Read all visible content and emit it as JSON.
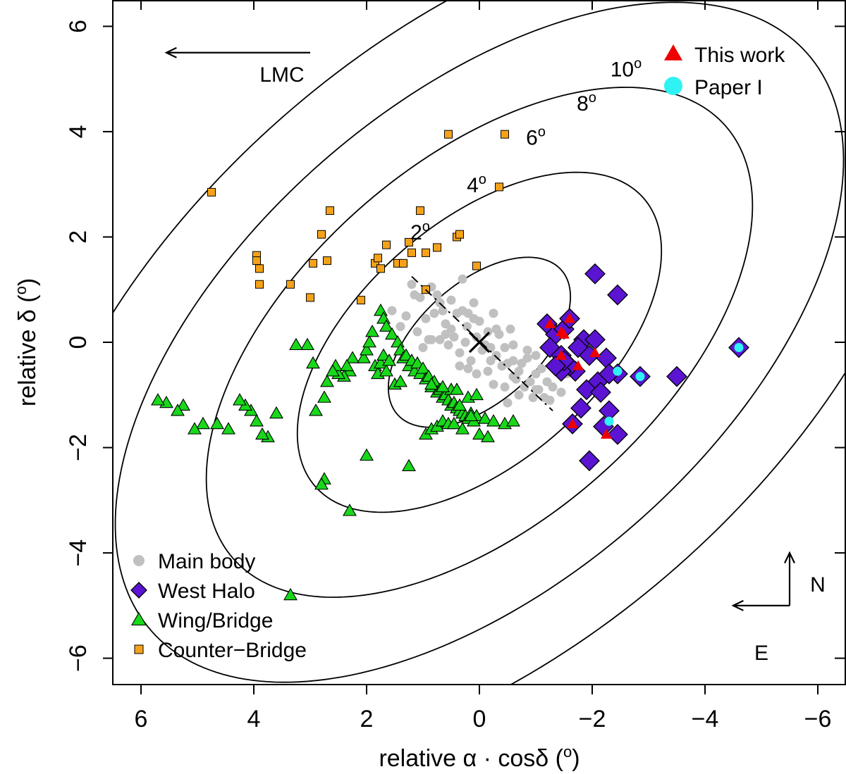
{
  "chart_data": {
    "type": "scatter",
    "title": "",
    "xlabel": "relative α · cosδ (°)",
    "ylabel": "relative δ (°)",
    "xlim": [
      6.5,
      -6.5
    ],
    "ylim": [
      -6.5,
      6.5
    ],
    "x_ticks": [
      6,
      4,
      2,
      0,
      -2,
      -4,
      -6
    ],
    "x_tick_labels": [
      "6",
      "4",
      "2",
      "0",
      "−2",
      "−4",
      "−6"
    ],
    "y_ticks": [
      -6,
      -4,
      -2,
      0,
      2,
      4,
      6
    ],
    "y_tick_labels": [
      "−6",
      "−4",
      "−2",
      "0",
      "2",
      "4",
      "6"
    ],
    "grid": false,
    "ellipses": {
      "axis_ratio": 0.55,
      "position_angle_deg": 45,
      "semi_major_deg": [
        2,
        4,
        6,
        8,
        10
      ],
      "labels": [
        "2°",
        "4°",
        "6°",
        "8°",
        "10°"
      ],
      "label_positions": [
        [
          1.05,
          1.95
        ],
        [
          0.05,
          2.85
        ],
        [
          -1.0,
          3.75
        ],
        [
          -1.9,
          4.4
        ],
        [
          -2.6,
          5.05
        ]
      ]
    },
    "center_marker": {
      "x": 0,
      "y": 0,
      "symbol": "x"
    },
    "major_axis_line": {
      "x": [
        1.2,
        -1.3
      ],
      "y": [
        1.25,
        -1.3
      ],
      "style": "dot-dash"
    },
    "annotations": {
      "lmc_label": "LMC",
      "lmc_arrow": {
        "from": [
          3.0,
          5.5
        ],
        "to": [
          5.55,
          5.5
        ]
      },
      "lmc_label_pos": [
        3.5,
        4.95
      ],
      "compass_n": "N",
      "compass_e": "E",
      "compass_origin": [
        -5.5,
        -5.0
      ],
      "compass_n_tip": [
        -5.5,
        -4.0
      ],
      "compass_e_tip": [
        -4.5,
        -5.0
      ],
      "compass_n_label_pos": [
        -6.0,
        -4.6
      ],
      "compass_e_label_pos": [
        -5.0,
        -5.9
      ]
    },
    "legend_bottom_left": {
      "position": "bottom-left",
      "entries": [
        "Main body",
        "West Halo",
        "Wing/Bridge",
        "Counter−Bridge"
      ]
    },
    "legend_top_right": {
      "position": "top-right",
      "entries": [
        "This work",
        "Paper I"
      ]
    },
    "colors": {
      "main_body": "#c0c0c0",
      "west_halo": "#5a14d2",
      "wing_bridge": "#18d81a",
      "counter_bridge": "#f5a21a",
      "this_work": "#ee0000",
      "paper_i": "#2ff2f2"
    },
    "series": [
      {
        "name": "Main body",
        "marker": "circle",
        "x": [
          1.05,
          0.85,
          0.65,
          0.4,
          0.22,
          0.05,
          -0.1,
          -0.3,
          -0.5,
          -0.7,
          -0.9,
          -1.05,
          -1.15,
          0.95,
          0.7,
          0.5,
          0.25,
          0.0,
          -0.2,
          -0.45,
          -0.65,
          -0.85,
          -1.1,
          -1.25,
          1.1,
          0.9,
          0.6,
          0.35,
          0.1,
          -0.15,
          -0.35,
          -0.6,
          -0.8,
          -1.0,
          -1.2,
          1.3,
          1.15,
          0.75,
          0.55,
          0.3,
          -0.05,
          -0.25,
          -0.55,
          -0.75,
          -0.95,
          -1.3,
          0.8,
          0.45,
          0.15,
          -0.4,
          -0.7,
          -1.45,
          1.2,
          0.7,
          -0.3,
          -1.0,
          0.2,
          -0.6,
          0.5,
          -0.15,
          1.4,
          1.0,
          0.6,
          0.2,
          -0.2,
          -0.6,
          -1.0,
          0.05,
          0.35,
          -0.45,
          0.85,
          -0.85,
          1.55,
          -1.55,
          0.3,
          -0.5,
          0.1,
          -0.25
        ],
        "y": [
          0.85,
          1.05,
          0.6,
          0.55,
          0.3,
          0.1,
          -0.05,
          -0.25,
          -0.4,
          -0.55,
          -0.75,
          -0.9,
          -1.05,
          0.45,
          0.75,
          0.25,
          0.0,
          0.4,
          -0.35,
          -0.1,
          -0.7,
          -0.3,
          -0.5,
          -1.1,
          0.2,
          0.05,
          0.35,
          -0.2,
          0.75,
          -0.55,
          0.15,
          -0.05,
          -0.85,
          -0.6,
          -0.75,
          0.5,
          0.9,
          0.9,
          -0.05,
          0.6,
          -0.15,
          -0.8,
          0.25,
          -0.4,
          -1.05,
          -0.85,
          0.55,
          0.1,
          -0.35,
          -0.45,
          -1.0,
          -0.95,
          1.1,
          0.05,
          0.25,
          -0.25,
          0.55,
          -0.65,
          0.8,
          0.2,
          0.3,
          -0.1,
          0.15,
          -0.5,
          -0.1,
          -0.35,
          -0.9,
          -0.6,
          -0.45,
          -0.85,
          0.05,
          -0.15,
          0.6,
          -0.6,
          1.2,
          -1.15,
          0.45,
          0.55
        ]
      },
      {
        "name": "West Halo",
        "marker": "diamond",
        "x": [
          -1.2,
          -1.35,
          -1.5,
          -1.6,
          -1.25,
          -1.45,
          -1.7,
          -1.85,
          -2.05,
          -1.75,
          -1.6,
          -1.45,
          -1.95,
          -2.25,
          -2.1,
          -2.45,
          -1.9,
          -2.15,
          -1.8,
          -2.3,
          -1.65,
          -2.2,
          -2.45,
          -2.85,
          -3.5,
          -4.6,
          -2.05,
          -2.45,
          -1.95,
          -2.3,
          -1.5,
          -1.35
        ],
        "y": [
          0.35,
          0.15,
          0.25,
          0.45,
          -0.1,
          -0.25,
          -0.55,
          0.05,
          0.05,
          -0.1,
          -0.45,
          -0.55,
          -0.25,
          -0.3,
          -0.75,
          -0.6,
          -0.9,
          -0.95,
          -1.25,
          -1.3,
          -1.55,
          -1.6,
          -1.75,
          -0.65,
          -0.65,
          -0.1,
          1.3,
          0.9,
          -2.25,
          -0.6,
          -0.35,
          -0.45
        ]
      },
      {
        "name": "Wing/Bridge",
        "marker": "triangle",
        "x": [
          1.75,
          1.7,
          1.65,
          1.55,
          1.45,
          1.4,
          1.35,
          1.3,
          1.25,
          1.2,
          1.15,
          1.1,
          1.05,
          1.0,
          0.95,
          0.9,
          0.85,
          0.8,
          0.75,
          0.7,
          0.65,
          0.6,
          0.55,
          0.5,
          0.45,
          0.4,
          0.35,
          0.3,
          0.25,
          0.2,
          0.15,
          0.1,
          0.05,
          -0.1,
          -0.25,
          -0.45,
          -0.6,
          2.05,
          2.0,
          1.95,
          1.9,
          1.85,
          1.8,
          1.75,
          1.7,
          1.65,
          1.6,
          2.25,
          2.3,
          2.35,
          2.4,
          2.5,
          2.55,
          2.6,
          2.7,
          2.75,
          2.9,
          2.95,
          3.05,
          3.25,
          3.6,
          3.75,
          3.85,
          3.95,
          4.05,
          4.15,
          4.25,
          4.45,
          4.65,
          4.9,
          5.05,
          5.25,
          5.35,
          5.55,
          5.7,
          0.95,
          0.85,
          0.75,
          0.65,
          0.55,
          0.45,
          0.3,
          0.15,
          0.0,
          -0.15,
          0.5,
          0.35,
          2.0,
          1.25,
          2.3,
          2.75,
          2.8,
          3.35,
          1.5,
          1.4,
          0.85,
          0.65,
          0.4,
          0.2,
          0.05
        ],
        "y": [
          0.6,
          0.45,
          0.3,
          0.15,
          0.0,
          -0.15,
          -0.3,
          -0.25,
          -0.45,
          -0.35,
          -0.55,
          -0.4,
          -0.6,
          -0.5,
          -0.7,
          -0.65,
          -0.85,
          -0.75,
          -0.95,
          -0.9,
          -1.05,
          -1.0,
          -1.1,
          -1.2,
          -1.15,
          -1.25,
          -1.3,
          -1.35,
          -1.4,
          -1.45,
          -1.35,
          -1.5,
          -1.4,
          -1.45,
          -1.5,
          -1.55,
          -1.5,
          -0.3,
          -0.15,
          0.0,
          0.2,
          -0.45,
          -0.6,
          -0.4,
          -0.25,
          -0.55,
          -0.35,
          -0.3,
          -0.55,
          -0.45,
          -0.65,
          -0.6,
          -0.45,
          -0.55,
          -0.75,
          -1.05,
          -1.3,
          -0.4,
          -0.05,
          -0.05,
          -1.35,
          -1.8,
          -1.75,
          -1.5,
          -1.3,
          -1.2,
          -1.1,
          -1.65,
          -1.55,
          -1.55,
          -1.65,
          -1.2,
          -1.3,
          -1.15,
          -1.1,
          -1.75,
          -1.65,
          -1.6,
          -1.5,
          -1.55,
          -1.55,
          -1.65,
          -1.4,
          -1.75,
          -1.8,
          -0.9,
          -1.2,
          -2.15,
          -2.35,
          -3.2,
          -2.6,
          -2.7,
          -4.8,
          -0.8,
          -0.75,
          -0.8,
          -0.85,
          -0.9,
          -1.05,
          -1.0
        ]
      },
      {
        "name": "Counter−Bridge",
        "marker": "square",
        "x": [
          4.75,
          3.95,
          3.95,
          3.9,
          3.9,
          3.35,
          3.0,
          2.95,
          2.8,
          2.7,
          2.65,
          2.1,
          1.85,
          1.8,
          1.75,
          1.65,
          1.45,
          1.35,
          1.25,
          1.2,
          1.05,
          0.95,
          0.95,
          0.75,
          0.4,
          0.35,
          0.05,
          0.55,
          -0.45,
          -0.35
        ],
        "y": [
          2.85,
          1.65,
          1.55,
          1.4,
          1.1,
          1.1,
          0.85,
          1.5,
          2.05,
          1.55,
          2.5,
          0.8,
          1.5,
          1.6,
          1.4,
          1.85,
          1.5,
          1.5,
          1.9,
          1.7,
          2.5,
          1.7,
          1.0,
          1.8,
          2.0,
          2.05,
          1.45,
          3.95,
          3.95,
          2.95
        ]
      },
      {
        "name": "This work",
        "marker": "triangle",
        "x": [
          -1.25,
          -1.45,
          -1.6,
          -1.5,
          -1.45,
          -1.75,
          -2.05,
          -1.65,
          -2.25
        ],
        "y": [
          0.35,
          0.2,
          0.45,
          0.15,
          -0.25,
          -0.45,
          -0.2,
          -1.55,
          -1.75
        ]
      },
      {
        "name": "Paper I",
        "marker": "circle",
        "x": [
          -2.45,
          -2.85,
          -2.3,
          -4.6
        ],
        "y": [
          -0.55,
          -0.65,
          -1.5,
          -0.1
        ]
      }
    ]
  }
}
